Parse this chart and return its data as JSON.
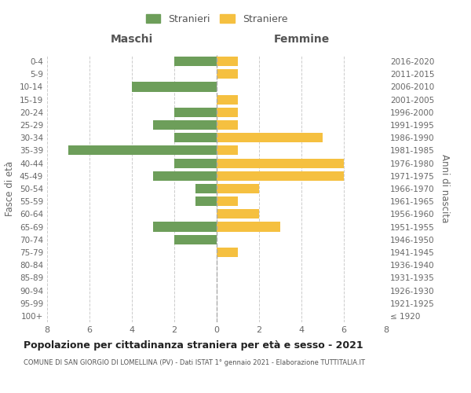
{
  "age_groups": [
    "100+",
    "95-99",
    "90-94",
    "85-89",
    "80-84",
    "75-79",
    "70-74",
    "65-69",
    "60-64",
    "55-59",
    "50-54",
    "45-49",
    "40-44",
    "35-39",
    "30-34",
    "25-29",
    "20-24",
    "15-19",
    "10-14",
    "5-9",
    "0-4"
  ],
  "birth_years": [
    "≤ 1920",
    "1921-1925",
    "1926-1930",
    "1931-1935",
    "1936-1940",
    "1941-1945",
    "1946-1950",
    "1951-1955",
    "1956-1960",
    "1961-1965",
    "1966-1970",
    "1971-1975",
    "1976-1980",
    "1981-1985",
    "1986-1990",
    "1991-1995",
    "1996-2000",
    "2001-2005",
    "2006-2010",
    "2011-2015",
    "2016-2020"
  ],
  "maschi": [
    0,
    0,
    0,
    0,
    0,
    0,
    2,
    3,
    0,
    1,
    1,
    3,
    2,
    7,
    2,
    3,
    2,
    0,
    4,
    0,
    2
  ],
  "femmine": [
    0,
    0,
    0,
    0,
    0,
    1,
    0,
    3,
    2,
    1,
    2,
    6,
    6,
    1,
    5,
    1,
    1,
    1,
    0,
    1,
    1
  ],
  "maschi_color": "#6d9e5a",
  "femmine_color": "#f5c040",
  "title": "Popolazione per cittadinanza straniera per età e sesso - 2021",
  "subtitle": "COMUNE DI SAN GIORGIO DI LOMELLINA (PV) - Dati ISTAT 1° gennaio 2021 - Elaborazione TUTTITALIA.IT",
  "xlabel_left": "Maschi",
  "xlabel_right": "Femmine",
  "ylabel_left": "Fasce di età",
  "ylabel_right": "Anni di nascita",
  "legend_maschi": "Stranieri",
  "legend_femmine": "Straniere",
  "xlim": 8,
  "background_color": "#ffffff",
  "grid_color": "#cccccc"
}
